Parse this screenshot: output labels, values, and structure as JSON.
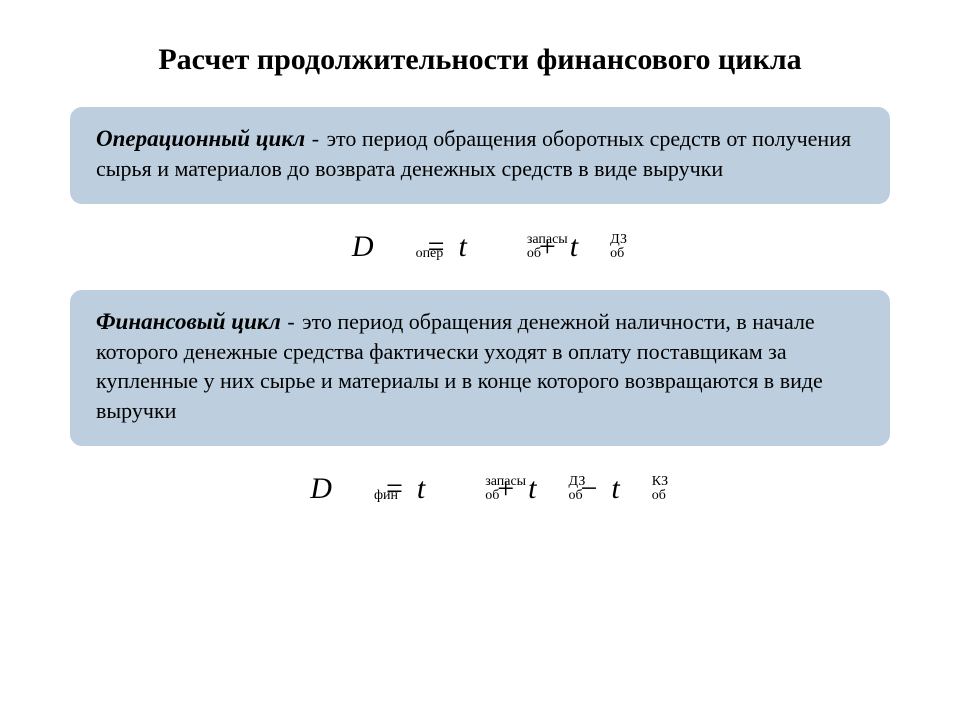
{
  "title": "Расчет продолжительности финансового цикла",
  "oper": {
    "term": "Операционный цикл",
    "dash": " - ",
    "text": "это период обращения оборотных средств от получения сырья и материалов до возврата денежных средств в виде выручки"
  },
  "fin": {
    "term": "Финансовый цикл",
    "dash": "  - ",
    "text": "это период обращения денежной наличности, в начале которого денежные средства фактически уходят в оплату поставщикам за купленные у них сырье и материалы и в конце которого возвращаются в виде выручки"
  },
  "formula": {
    "D": "D",
    "t": "t",
    "eq": "=",
    "plus": "+",
    "minus": "−",
    "sub_oper": "опер",
    "sub_fin": "фин",
    "sub_ob": "об",
    "sup_zapasy": "запасы",
    "sup_dz": "ДЗ",
    "sup_kz": "КЗ"
  },
  "colors": {
    "box_bg": "#bdcfdf",
    "text": "#000000",
    "page_bg": "#ffffff"
  }
}
